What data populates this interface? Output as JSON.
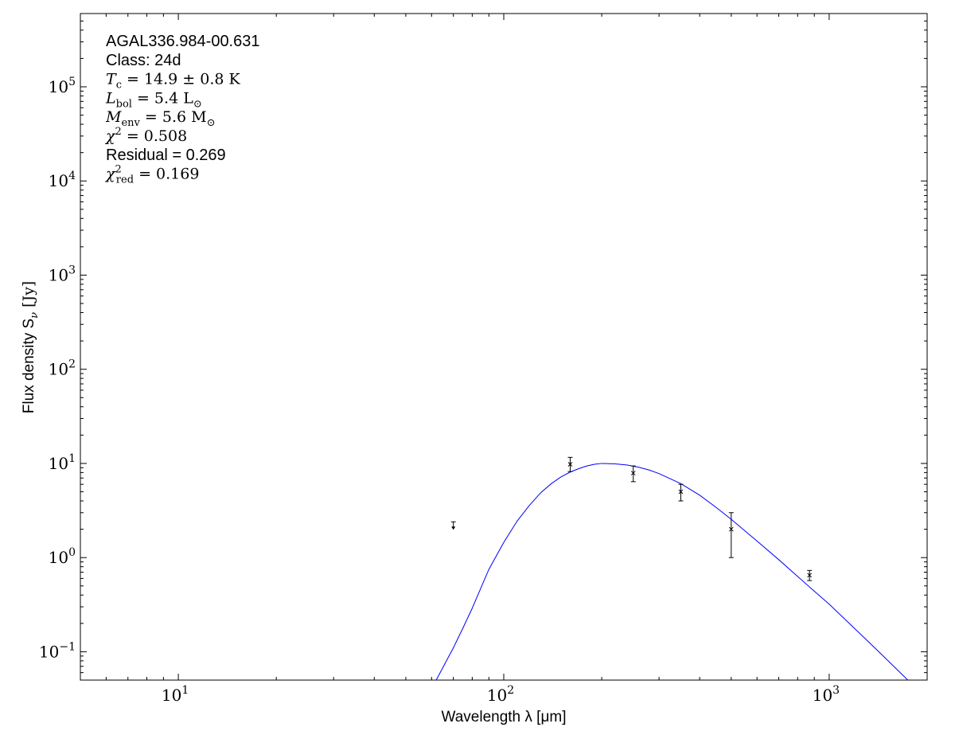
{
  "chart_data": {
    "type": "scatter",
    "title": "",
    "xlabel": "Wavelength λ [μm]",
    "ylabel": "Flux density S",
    "ylabel_sub": "ν",
    "ylabel_unit": " [Jy]",
    "xscale": "log",
    "yscale": "log",
    "xlim": [
      5,
      2000
    ],
    "ylim": [
      0.05,
      600000
    ],
    "x_ticks": [
      {
        "value": 10,
        "base": "10",
        "exp": "1"
      },
      {
        "value": 100,
        "base": "10",
        "exp": "2"
      },
      {
        "value": 1000,
        "base": "10",
        "exp": "3"
      }
    ],
    "y_ticks": [
      {
        "value": 0.1,
        "base": "10",
        "exp": "−1"
      },
      {
        "value": 1,
        "base": "10",
        "exp": "0"
      },
      {
        "value": 10,
        "base": "10",
        "exp": "1"
      },
      {
        "value": 100,
        "base": "10",
        "exp": "2"
      },
      {
        "value": 1000,
        "base": "10",
        "exp": "3"
      },
      {
        "value": 10000,
        "base": "10",
        "exp": "4"
      },
      {
        "value": 100000,
        "base": "10",
        "exp": "5"
      }
    ],
    "annotations": [
      {
        "parts": [
          {
            "t": "AGAL336.984-00.631",
            "f": "sans"
          }
        ]
      },
      {
        "parts": [
          {
            "t": "Class: 24d",
            "f": "sans"
          }
        ]
      },
      {
        "parts": [
          {
            "t": "T",
            "f": "serif-i"
          },
          {
            "t": "c",
            "f": "sub"
          },
          {
            "t": " = 14.9 ± 0.8 K",
            "f": "serif"
          }
        ]
      },
      {
        "parts": [
          {
            "t": "L",
            "f": "serif-i"
          },
          {
            "t": "bol",
            "f": "sub"
          },
          {
            "t": " = 5.4 L",
            "f": "serif"
          },
          {
            "t": "⊙",
            "f": "sub"
          }
        ]
      },
      {
        "parts": [
          {
            "t": "M",
            "f": "serif-i"
          },
          {
            "t": "env",
            "f": "sub"
          },
          {
            "t": " = 5.6 M",
            "f": "serif"
          },
          {
            "t": "⊙",
            "f": "sub"
          }
        ]
      },
      {
        "parts": [
          {
            "t": "χ",
            "f": "serif-i"
          },
          {
            "t": "2",
            "f": "sup"
          },
          {
            "t": " = 0.508",
            "f": "serif"
          }
        ]
      },
      {
        "parts": [
          {
            "t": "Residual = 0.269",
            "f": "sans"
          }
        ]
      },
      {
        "parts": [
          {
            "t": "χ",
            "f": "serif-i"
          },
          {
            "t": "2",
            "f": "sup"
          },
          {
            "t": "red",
            "f": "sub"
          },
          {
            "t": " = 0.169",
            "f": "serif"
          }
        ]
      }
    ],
    "points": [
      {
        "x": 160,
        "y": 9.8,
        "yerr_low": 8.2,
        "yerr_high": 11.6
      },
      {
        "x": 250,
        "y": 7.9,
        "yerr_low": 6.4,
        "yerr_high": 9.4
      },
      {
        "x": 350,
        "y": 5.0,
        "yerr_low": 4.0,
        "yerr_high": 6.0
      },
      {
        "x": 500,
        "y": 2.0,
        "yerr_low": 1.0,
        "yerr_high": 3.0
      },
      {
        "x": 870,
        "y": 0.65,
        "yerr_low": 0.57,
        "yerr_high": 0.73
      }
    ],
    "upper_limits": [
      {
        "x": 70,
        "y": 2.4
      }
    ],
    "model_curve": {
      "name": "",
      "color": "#0000ff",
      "x": [
        62,
        65,
        70,
        75,
        80,
        90,
        100,
        110,
        120,
        130,
        140,
        150,
        160,
        170,
        180,
        190,
        200,
        220,
        240,
        260,
        280,
        300,
        350,
        400,
        450,
        500,
        600,
        700,
        800,
        900,
        1000,
        1200,
        1400,
        1600,
        1800
      ],
      "y": [
        0.05,
        0.068,
        0.11,
        0.18,
        0.29,
        0.75,
        1.45,
        2.45,
        3.6,
        4.9,
        6.1,
        7.2,
        8.1,
        8.8,
        9.4,
        9.8,
        10.0,
        9.9,
        9.6,
        9.1,
        8.5,
        7.8,
        6.1,
        4.6,
        3.4,
        2.55,
        1.5,
        0.95,
        0.63,
        0.44,
        0.32,
        0.175,
        0.105,
        0.067,
        0.045
      ]
    },
    "marker_color": "#000000",
    "grid": false,
    "legend": "none"
  }
}
